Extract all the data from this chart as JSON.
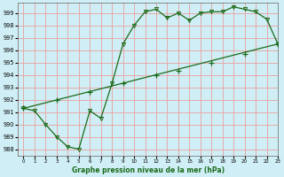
{
  "xlabel": "Graphe pression niveau de la mer (hPa)",
  "bg_color": "#d0eef5",
  "grid_color": "#e8a0a0",
  "line_color": "#1a6b1a",
  "xlim": [
    -0.5,
    23
  ],
  "ylim": [
    987.5,
    999.8
  ],
  "yticks": [
    988,
    989,
    990,
    991,
    992,
    993,
    994,
    995,
    996,
    997,
    998,
    999
  ],
  "xticks": [
    0,
    1,
    2,
    3,
    4,
    5,
    6,
    7,
    8,
    9,
    10,
    11,
    12,
    13,
    14,
    15,
    16,
    17,
    18,
    19,
    20,
    21,
    22,
    23
  ],
  "series1_x": [
    0,
    1,
    2,
    3,
    4,
    5,
    6,
    7,
    8,
    9,
    10,
    11,
    12,
    13,
    14,
    15,
    16,
    17,
    18,
    19,
    20,
    21,
    22,
    23
  ],
  "series1_y": [
    991.3,
    991.1,
    990.0,
    989.0,
    988.2,
    988.0,
    991.1,
    990.5,
    993.3,
    996.5,
    998.0,
    999.1,
    999.3,
    998.6,
    999.0,
    998.4,
    999.0,
    999.1,
    999.1,
    999.5,
    999.3,
    999.1,
    998.5,
    996.5
  ],
  "series1_marker_x": [
    0,
    1,
    2,
    3,
    4,
    5,
    6,
    7,
    8,
    9,
    10,
    11,
    12,
    13,
    14,
    15,
    16,
    17,
    18,
    19,
    20,
    21,
    22,
    23
  ],
  "series2_x": [
    0,
    23
  ],
  "series2_y": [
    991.3,
    996.5
  ],
  "series2_marker_x": [
    0,
    3,
    6,
    9,
    12,
    14,
    17,
    20,
    23
  ],
  "series2_marker_y": [
    991.3,
    991.95,
    992.6,
    993.3,
    993.95,
    994.3,
    995.0,
    995.7,
    996.5
  ]
}
